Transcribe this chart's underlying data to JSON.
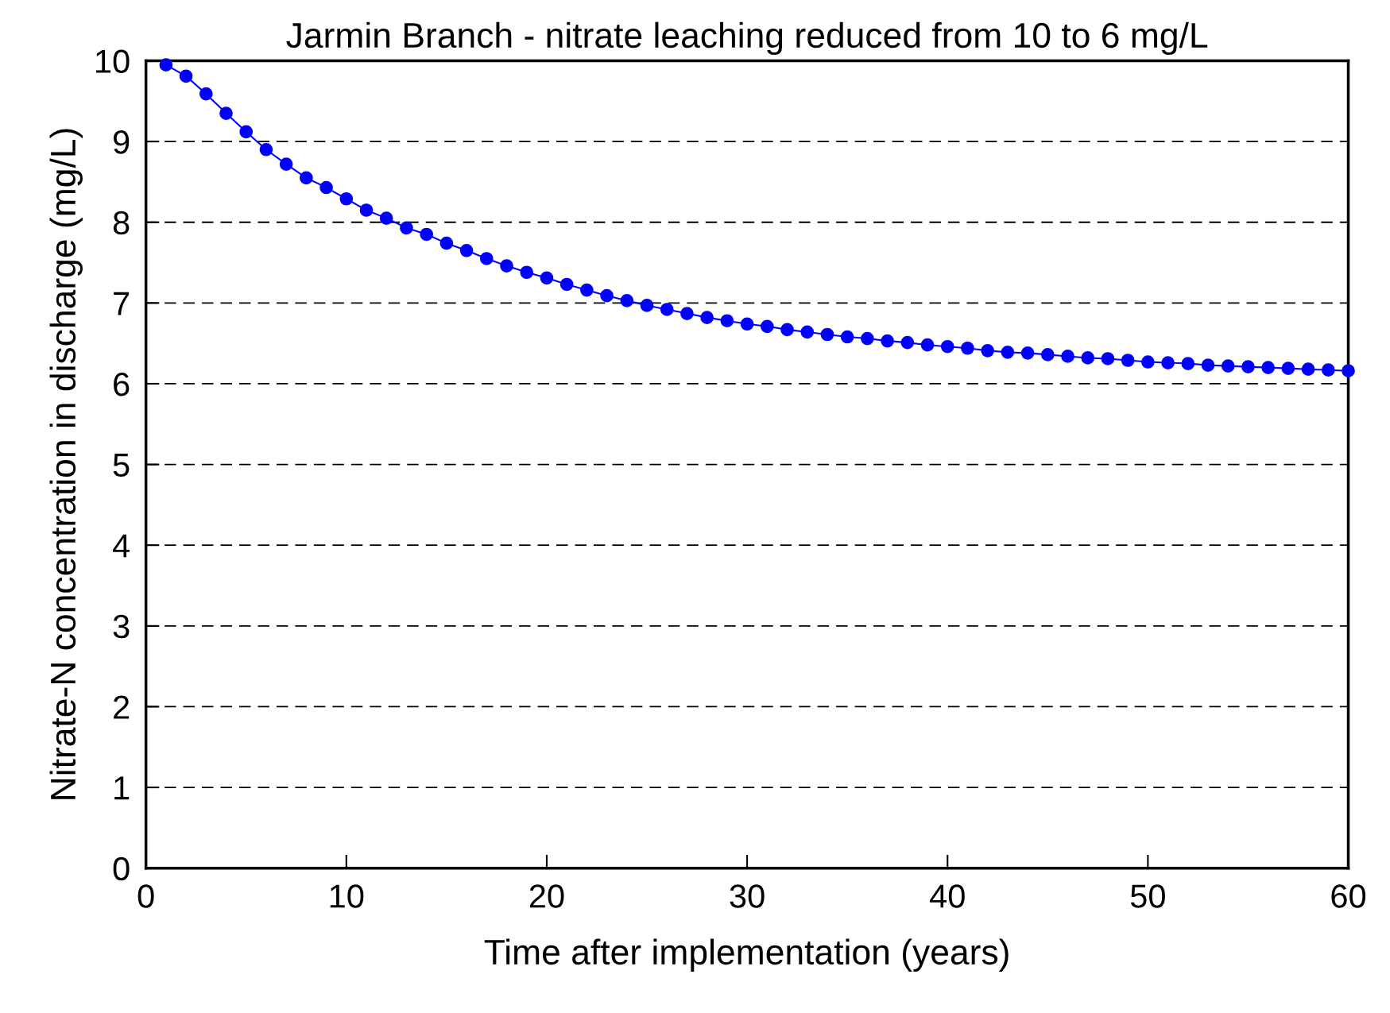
{
  "chart_data": {
    "type": "line",
    "title": "Jarmin Branch - nitrate leaching reduced from 10 to 6 mg/L",
    "xlabel": "Time after implementation (years)",
    "ylabel": "Nitrate-N concentration in discharge (mg/L)",
    "x": [
      1,
      2,
      3,
      4,
      5,
      6,
      7,
      8,
      9,
      10,
      11,
      12,
      13,
      14,
      15,
      16,
      17,
      18,
      19,
      20,
      21,
      22,
      23,
      24,
      25,
      26,
      27,
      28,
      29,
      30,
      31,
      32,
      33,
      34,
      35,
      36,
      37,
      38,
      39,
      40,
      41,
      42,
      43,
      44,
      45,
      46,
      47,
      48,
      49,
      50,
      51,
      52,
      53,
      54,
      55,
      56,
      57,
      58,
      59,
      60
    ],
    "series": [
      {
        "color": "#0000ff",
        "values": [
          9.95,
          9.81,
          9.59,
          9.35,
          9.12,
          8.9,
          8.72,
          8.55,
          8.43,
          8.29,
          8.15,
          8.05,
          7.93,
          7.85,
          7.74,
          7.65,
          7.55,
          7.46,
          7.38,
          7.31,
          7.23,
          7.16,
          7.09,
          7.03,
          6.97,
          6.92,
          6.87,
          6.82,
          6.78,
          6.74,
          6.71,
          6.67,
          6.64,
          6.61,
          6.58,
          6.56,
          6.53,
          6.51,
          6.48,
          6.46,
          6.44,
          6.41,
          6.39,
          6.38,
          6.36,
          6.34,
          6.32,
          6.31,
          6.29,
          6.27,
          6.26,
          6.25,
          6.23,
          6.22,
          6.21,
          6.2,
          6.19,
          6.18,
          6.17,
          6.16
        ]
      }
    ],
    "xlim": [
      0,
      60
    ],
    "xticks": [
      0,
      10,
      20,
      30,
      40,
      50,
      60
    ],
    "ylim": [
      0,
      10
    ],
    "yticks": [
      0,
      1,
      2,
      3,
      4,
      5,
      6,
      7,
      8,
      9,
      10
    ],
    "grid": "y",
    "marker": "circle",
    "line_style": "solid"
  }
}
